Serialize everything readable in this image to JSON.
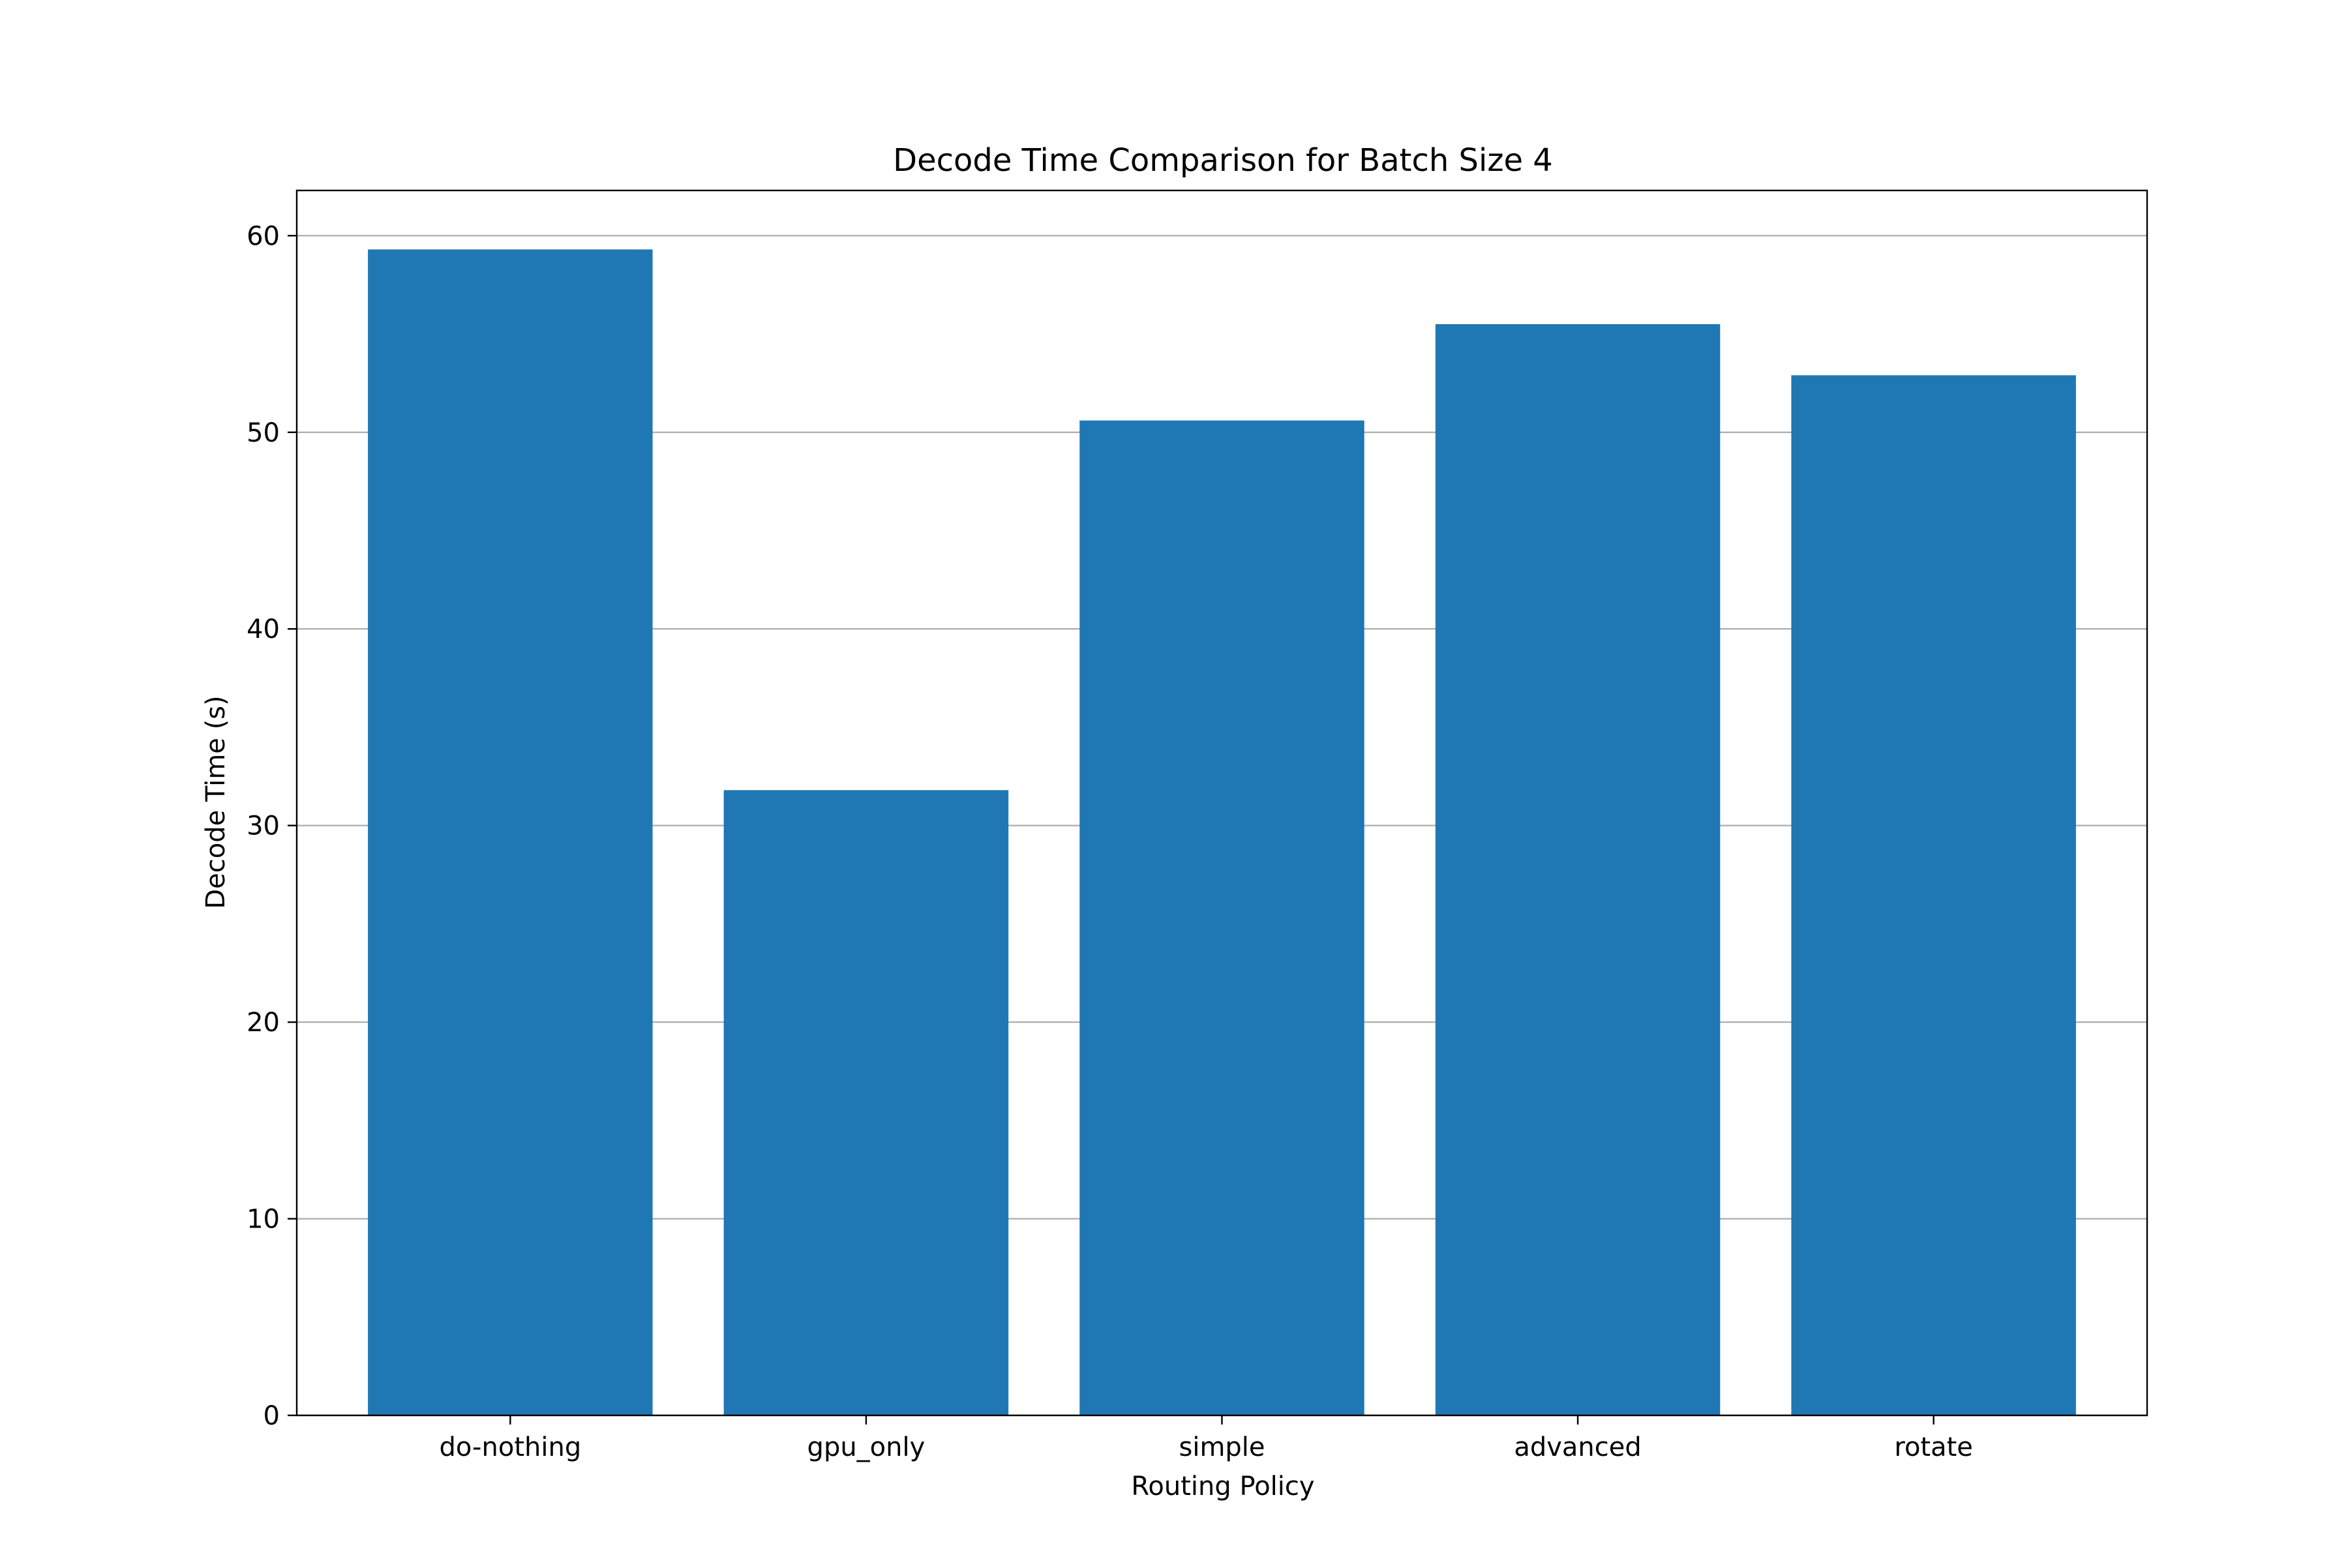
{
  "chart_data": {
    "type": "bar",
    "title": "Decode Time Comparison for Batch Size 4",
    "xlabel": "Routing Policy",
    "ylabel": "Decode Time (s)",
    "categories": [
      "do-nothing",
      "gpu_only",
      "simple",
      "advanced",
      "rotate"
    ],
    "values": [
      59.3,
      31.8,
      50.6,
      55.5,
      52.9
    ],
    "ylim": [
      0,
      62.3
    ],
    "yticks": [
      0,
      10,
      20,
      30,
      40,
      50,
      60
    ],
    "grid": "horizontal",
    "bar_color": "#1f77b4",
    "grid_color": "#b0b0b0"
  }
}
